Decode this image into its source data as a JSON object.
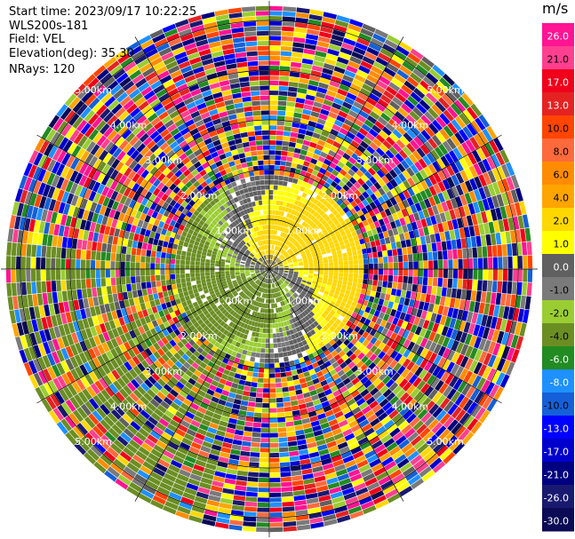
{
  "header": {
    "start_time": "Start time: 2023/09/17 10:22:25",
    "instrument": "WLS200s-181",
    "field": "Field: VEL",
    "elevation": "Elevation(deg): 35.30",
    "nrays": "NRays: 120"
  },
  "chart_data": {
    "type": "polar-ppi",
    "field": "VEL",
    "unit": "m/s",
    "nrays": 120,
    "elevation_deg": 35.3,
    "range_ring_labels": [
      "1.00km",
      "2.00km",
      "3.00km",
      "4.00km",
      "5.00km"
    ],
    "colorbar": {
      "label": "m/s",
      "ticks": [
        "26.0",
        "21.0",
        "17.0",
        "13.0",
        "10.0",
        "8.0",
        "6.0",
        "4.0",
        "2.0",
        "1.0",
        "0.0",
        "-1.0",
        "-2.0",
        "-4.0",
        "-6.0",
        "-8.0",
        "-10.0",
        "-13.0",
        "-17.0",
        "-21.0",
        "-26.0",
        "-30.0"
      ],
      "colors_top_to_bottom": [
        "#ff1493",
        "#ff3f8f",
        "#f0001a",
        "#e52222",
        "#ff4500",
        "#ff6a3c",
        "#ff8c00",
        "#ffa500",
        "#ffd700",
        "#ffff00",
        "#606060",
        "#7a7a7a",
        "#9acd32",
        "#6b8e23",
        "#228b22",
        "#1e90ff",
        "#1560d8",
        "#0000ff",
        "#0000cd",
        "#000080",
        "#191970",
        "#0b0b55"
      ]
    },
    "pattern": {
      "near_range_max_km": 1.9,
      "notes": "grey near 0 m/s S-shaped band, yellow positive north, olive/green negative south, noisy far range"
    }
  }
}
